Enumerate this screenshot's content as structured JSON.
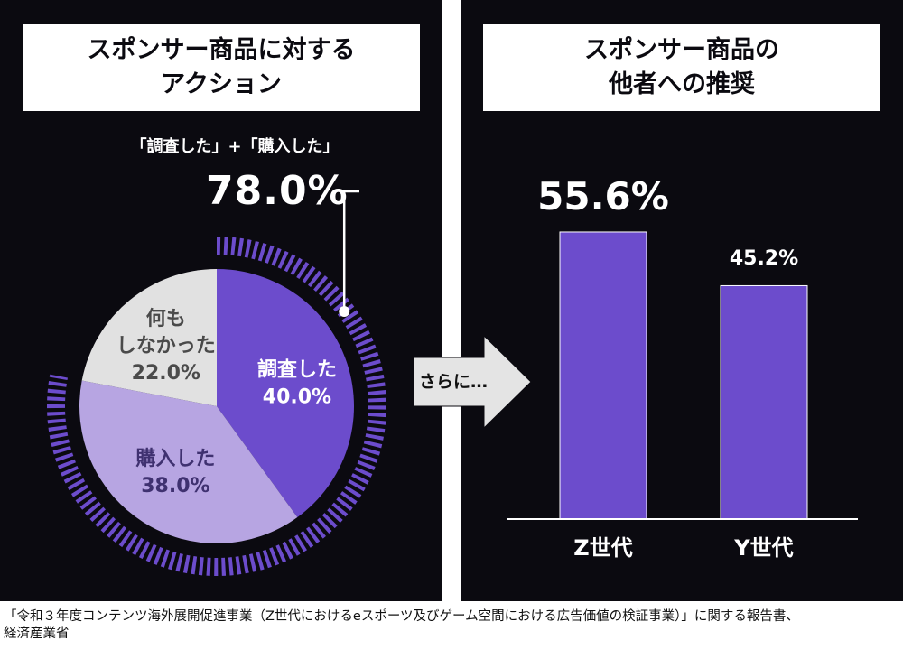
{
  "source_line1": "「令和３年度コンテンツ海外展開促進事業（Z世代におけるeスポーツ及びゲーム空間における広告価値の検証事業）」に関する報告書、",
  "source_line2": "経済産業省",
  "arrow_label": "さらに…",
  "colors": {
    "panel": "#0b0a10",
    "accent": "#6c4ccc",
    "light_purple": "#b7a5e2",
    "gray": "#e1e1e1"
  },
  "chart_data": [
    {
      "type": "pie",
      "title_lines": [
        "スポンサー商品に対する",
        "アクション"
      ],
      "unit": "%",
      "slices": [
        {
          "name": "調査した",
          "value": 40.0,
          "label_lines": [
            "調査した",
            "40.0%"
          ],
          "color": "#6c4ccc"
        },
        {
          "name": "購入した",
          "value": 38.0,
          "label_lines": [
            "購入した",
            "38.0%"
          ],
          "color": "#b7a5e2"
        },
        {
          "name": "何もしなかった",
          "value": 22.0,
          "label_lines": [
            "何も",
            "しなかった",
            "22.0%"
          ],
          "color": "#e1e1e1"
        }
      ],
      "annotation": {
        "label": "「調査した」+「購入した」",
        "value": "78.0%",
        "covers": [
          "調査した",
          "購入した"
        ]
      }
    },
    {
      "type": "bar",
      "title_lines": [
        "スポンサー商品の",
        "他者への推奨"
      ],
      "categories": [
        "Z世代",
        "Y世代"
      ],
      "values": [
        55.6,
        45.2
      ],
      "value_labels": [
        "55.6%",
        "45.2%"
      ],
      "unit": "%",
      "ylim": [
        0,
        100
      ],
      "color": "#6c4ccc"
    }
  ]
}
